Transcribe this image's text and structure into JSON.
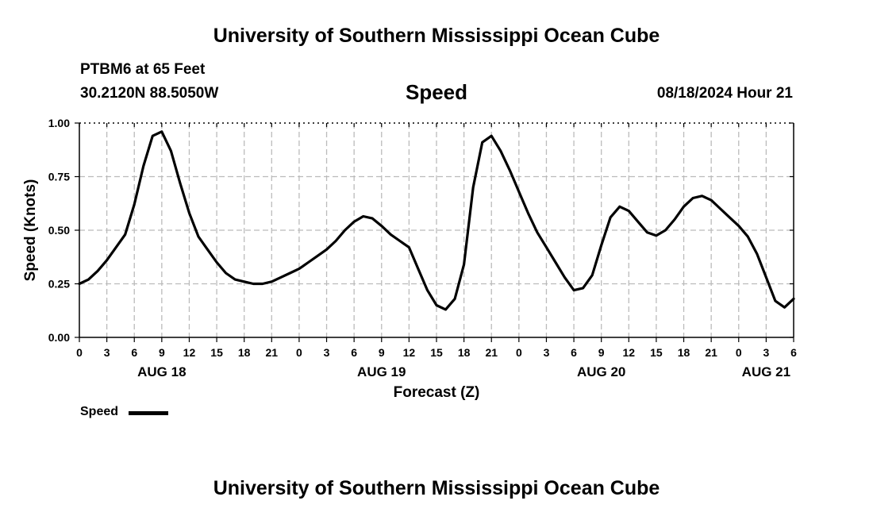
{
  "header": {
    "title_top": "University of Southern Mississippi Ocean Cube",
    "station": "PTBM6 at 65 Feet",
    "coords": "30.2120N  88.5050W",
    "chart_title": "Speed",
    "issued": "08/18/2024 Hour 21"
  },
  "footer": {
    "title_bottom": "University of Southern Mississippi Ocean Cube"
  },
  "legend": {
    "label": "Speed",
    "line_color": "#000000"
  },
  "colors": {
    "line": "#000000",
    "grid": "#bbbbbb",
    "axis": "#000000"
  },
  "chart_data": {
    "type": "line",
    "title": "Speed",
    "xlabel": "Forecast (Z)",
    "ylabel": "Speed (Knots)",
    "xlim": [
      0,
      78
    ],
    "ylim": [
      0,
      1
    ],
    "x_ticks": [
      0,
      3,
      6,
      9,
      12,
      15,
      18,
      21,
      24,
      27,
      30,
      33,
      36,
      39,
      42,
      45,
      48,
      51,
      54,
      57,
      60,
      63,
      66,
      69,
      72,
      75,
      78
    ],
    "x_tick_labels": [
      "0",
      "3",
      "6",
      "9",
      "12",
      "15",
      "18",
      "21",
      "0",
      "3",
      "6",
      "9",
      "12",
      "15",
      "18",
      "21",
      "0",
      "3",
      "6",
      "9",
      "12",
      "15",
      "18",
      "21",
      "0",
      "3",
      "6"
    ],
    "y_ticks": [
      0,
      0.25,
      0.5,
      0.75,
      1.0
    ],
    "y_tick_labels": [
      "0.00",
      "0.25",
      "0.50",
      "0.75",
      "1.00"
    ],
    "day_labels": [
      {
        "x": 9,
        "label": "AUG 18"
      },
      {
        "x": 33,
        "label": "AUG 19"
      },
      {
        "x": 57,
        "label": "AUG 20"
      },
      {
        "x": 75,
        "label": "AUG 21"
      }
    ],
    "grid": true,
    "series": [
      {
        "name": "Speed",
        "x": [
          0,
          1,
          2,
          3,
          4,
          5,
          6,
          7,
          8,
          9,
          10,
          11,
          12,
          13,
          14,
          15,
          16,
          17,
          18,
          19,
          20,
          21,
          22,
          23,
          24,
          25,
          26,
          27,
          28,
          29,
          30,
          31,
          32,
          33,
          34,
          35,
          36,
          37,
          38,
          39,
          40,
          41,
          42,
          43,
          44,
          45,
          46,
          47,
          48,
          49,
          50,
          51,
          52,
          53,
          54,
          55,
          56,
          57,
          58,
          59,
          60,
          61,
          62,
          63,
          64,
          65,
          66,
          67,
          68,
          69,
          70,
          71,
          72,
          73,
          74,
          75,
          76,
          77,
          78
        ],
        "values": [
          0.25,
          0.27,
          0.31,
          0.36,
          0.42,
          0.48,
          0.62,
          0.8,
          0.94,
          0.96,
          0.87,
          0.72,
          0.58,
          0.47,
          0.41,
          0.35,
          0.3,
          0.27,
          0.26,
          0.25,
          0.25,
          0.26,
          0.28,
          0.3,
          0.32,
          0.35,
          0.38,
          0.41,
          0.45,
          0.5,
          0.54,
          0.565,
          0.555,
          0.52,
          0.48,
          0.45,
          0.42,
          0.32,
          0.22,
          0.15,
          0.13,
          0.18,
          0.34,
          0.7,
          0.91,
          0.94,
          0.87,
          0.78,
          0.68,
          0.58,
          0.49,
          0.42,
          0.35,
          0.28,
          0.22,
          0.23,
          0.29,
          0.43,
          0.56,
          0.61,
          0.59,
          0.54,
          0.49,
          0.475,
          0.5,
          0.55,
          0.61,
          0.65,
          0.66,
          0.64,
          0.6,
          0.56,
          0.52,
          0.47,
          0.39,
          0.28,
          0.17,
          0.14,
          0.18
        ]
      }
    ]
  }
}
